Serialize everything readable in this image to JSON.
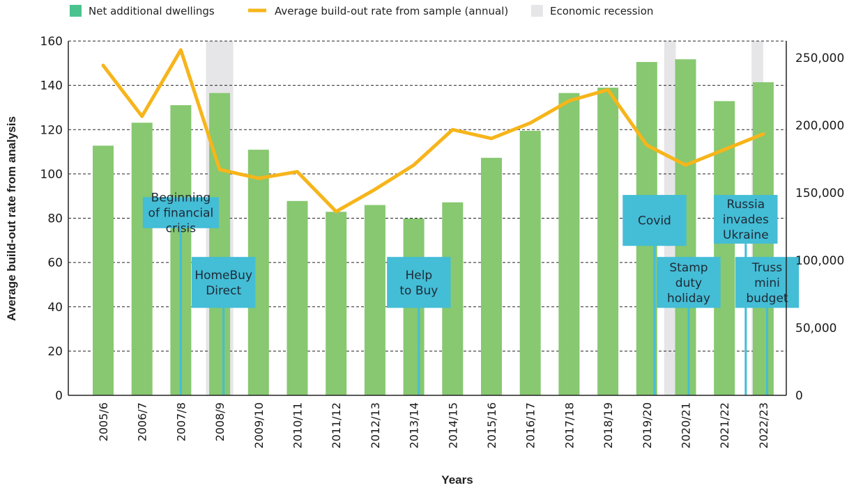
{
  "chart_data": {
    "type": "bar+line",
    "categories": [
      "2005/6",
      "2006/7",
      "2007/8",
      "2008/9",
      "2009/10",
      "2010/11",
      "2011/12",
      "2012/13",
      "2013/14",
      "2014/15",
      "2015/16",
      "2016/17",
      "2017/18",
      "2018/19",
      "2019/20",
      "2020/21",
      "2021/22",
      "2022/23"
    ],
    "series": [
      {
        "name": "Net additional dwellings",
        "type": "bar",
        "axis": "right",
        "color": "#87c870",
        "values": [
          185000,
          202000,
          215000,
          224000,
          182000,
          144000,
          136000,
          141000,
          131000,
          143000,
          176000,
          196000,
          224000,
          228000,
          247000,
          249000,
          218000,
          232000
        ]
      },
      {
        "name": "Average build-out rate from sample (annual)",
        "type": "line",
        "axis": "left",
        "color": "#f6b51b",
        "values": [
          149,
          126,
          156,
          102,
          98,
          101,
          83,
          93,
          104,
          120,
          116,
          123,
          133,
          138,
          113,
          104,
          111,
          118
        ]
      }
    ],
    "recessions": [
      {
        "name": "Economic recession",
        "start": "2008/9",
        "end": "2008/9",
        "offset_start": -0.35,
        "offset_end": 0.35
      },
      {
        "name": "Economic recession",
        "start": "2020/21",
        "end": "2020/21",
        "offset_start": -0.55,
        "offset_end": -0.25
      },
      {
        "name": "Economic recession",
        "start": "2022/23",
        "end": "2022/23",
        "offset_start": -0.3,
        "offset_end": 0.0
      }
    ],
    "recession_color": "#e6e6e8",
    "xlabel": "Years",
    "ylabel_left": "Average build-out rate from analysis",
    "ylim_left": [
      0,
      160
    ],
    "yticks_left": [
      "0",
      "20",
      "40",
      "60",
      "80",
      "100",
      "120",
      "140",
      "160"
    ],
    "ylim_right": [
      0,
      262500
    ],
    "yticks_right": [
      {
        "value": 0,
        "label": "0"
      },
      {
        "value": 50000,
        "label": "50,000"
      },
      {
        "value": 100000,
        "label": "100,000"
      },
      {
        "value": 150000,
        "label": "150,000"
      },
      {
        "value": 200000,
        "label": "200,000"
      },
      {
        "value": 250000,
        "label": "250,000"
      }
    ],
    "grid": "dashed horizontal",
    "legend": [
      {
        "label": "Net additional dwellings",
        "kind": "box",
        "color": "#4cc28f"
      },
      {
        "label": "Average build-out rate from sample (annual)",
        "kind": "line",
        "color": "#f6b51b"
      },
      {
        "label": "Economic recession",
        "kind": "box",
        "color": "#e6e6e8"
      }
    ],
    "legend_position": "top",
    "annotations": [
      {
        "lines": [
          "Beginning",
          "of financial",
          "crisis"
        ],
        "category": "2007/8",
        "offset": 0.0,
        "top_value": 89.5,
        "bottom_value": 75.5,
        "half_width": 0.98
      },
      {
        "lines": [
          "HomeBuy",
          "Direct"
        ],
        "category": "2008/9",
        "offset": 0.1,
        "top_value": 62.5,
        "bottom_value": 39.5,
        "half_width": 0.82
      },
      {
        "lines": [
          "Help",
          "to Buy"
        ],
        "category": "2013/14",
        "offset": 0.13,
        "top_value": 62.5,
        "bottom_value": 39.5,
        "half_width": 0.82
      },
      {
        "lines": [
          "Covid"
        ],
        "category": "2019/20",
        "offset": 0.2,
        "top_value": 90.5,
        "bottom_value": 67.5,
        "half_width": 0.82
      },
      {
        "lines": [
          "Stamp",
          "duty",
          "holiday"
        ],
        "category": "2020/21",
        "offset": 0.08,
        "top_value": 62.5,
        "bottom_value": 39.5,
        "half_width": 0.82
      },
      {
        "lines": [
          "Russia",
          "invades",
          "Ukraine"
        ],
        "category": "2021/22",
        "offset": 0.55,
        "top_value": 90.5,
        "bottom_value": 68.5,
        "half_width": 0.82
      },
      {
        "lines": [
          "Truss",
          "mini",
          "budget"
        ],
        "category": "2022/23",
        "offset": 0.1,
        "top_value": 62.5,
        "bottom_value": 39.5,
        "half_width": 0.82
      }
    ],
    "annotation_color": "#44bdd6"
  }
}
